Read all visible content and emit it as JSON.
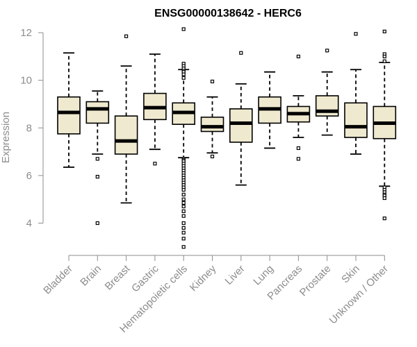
{
  "chart_data": {
    "type": "boxplot",
    "title": "ENSG00000138642 - HERC6",
    "xlabel": "",
    "ylabel": "Expression",
    "ylim": [
      3,
      12.2
    ],
    "yticks": [
      4,
      6,
      8,
      10,
      12
    ],
    "categories": [
      "Bladder",
      "Brain",
      "Breast",
      "Gastric",
      "Hematopoietic cells",
      "Kidney",
      "Liver",
      "Lung",
      "Pancreas",
      "Prostate",
      "Skin",
      "Unknown / Other"
    ],
    "boxes": [
      {
        "name": "Bladder",
        "whisker_low": 6.35,
        "q1": 7.75,
        "median": 8.65,
        "q3": 9.3,
        "whisker_high": 11.15,
        "outliers": []
      },
      {
        "name": "Brain",
        "whisker_low": 6.9,
        "q1": 8.2,
        "median": 8.8,
        "q3": 9.1,
        "whisker_high": 9.55,
        "outliers": [
          6.7,
          5.95,
          4.0
        ]
      },
      {
        "name": "Breast",
        "whisker_low": 4.85,
        "q1": 6.9,
        "median": 7.45,
        "q3": 8.5,
        "whisker_high": 10.6,
        "outliers": [
          11.85
        ]
      },
      {
        "name": "Gastric",
        "whisker_low": 7.1,
        "q1": 8.35,
        "median": 8.85,
        "q3": 9.45,
        "whisker_high": 11.1,
        "outliers": [
          6.5
        ]
      },
      {
        "name": "Hematopoietic cells",
        "whisker_low": 6.75,
        "q1": 8.15,
        "median": 8.65,
        "q3": 9.05,
        "whisker_high": 10.45,
        "outliers": [
          12.15,
          10.7,
          10.6,
          10.5,
          10.4,
          10.35,
          10.25,
          10.1,
          6.7,
          6.65,
          6.6,
          6.5,
          6.4,
          6.3,
          6.2,
          6.1,
          6.0,
          5.9,
          5.8,
          5.7,
          5.6,
          5.5,
          5.4,
          5.2,
          5.0,
          4.85,
          4.7,
          4.5,
          4.3,
          4.0,
          3.8,
          3.6,
          3.35,
          3.0
        ]
      },
      {
        "name": "Kidney",
        "whisker_low": 6.95,
        "q1": 7.85,
        "median": 8.05,
        "q3": 8.45,
        "whisker_high": 9.3,
        "outliers": [
          9.95,
          6.8
        ]
      },
      {
        "name": "Liver",
        "whisker_low": 5.6,
        "q1": 7.4,
        "median": 8.2,
        "q3": 8.8,
        "whisker_high": 9.85,
        "outliers": [
          11.15
        ]
      },
      {
        "name": "Lung",
        "whisker_low": 7.15,
        "q1": 8.2,
        "median": 8.8,
        "q3": 9.3,
        "whisker_high": 10.35,
        "outliers": []
      },
      {
        "name": "Pancreas",
        "whisker_low": 7.6,
        "q1": 8.25,
        "median": 8.6,
        "q3": 8.9,
        "whisker_high": 9.35,
        "outliers": [
          11.0,
          7.15,
          6.7
        ]
      },
      {
        "name": "Prostate",
        "whisker_low": 7.7,
        "q1": 8.5,
        "median": 8.7,
        "q3": 9.35,
        "whisker_high": 10.35,
        "outliers": [
          11.25
        ]
      },
      {
        "name": "Skin",
        "whisker_low": 6.9,
        "q1": 7.6,
        "median": 8.05,
        "q3": 9.05,
        "whisker_high": 10.45,
        "outliers": [
          11.95
        ]
      },
      {
        "name": "Unknown / Other",
        "whisker_low": 5.55,
        "q1": 7.55,
        "median": 8.2,
        "q3": 8.9,
        "whisker_high": 10.75,
        "outliers": [
          12.05,
          11.1,
          11.0,
          10.8,
          5.5,
          5.4,
          5.3,
          5.2,
          5.15,
          5.05,
          4.2
        ]
      }
    ]
  }
}
